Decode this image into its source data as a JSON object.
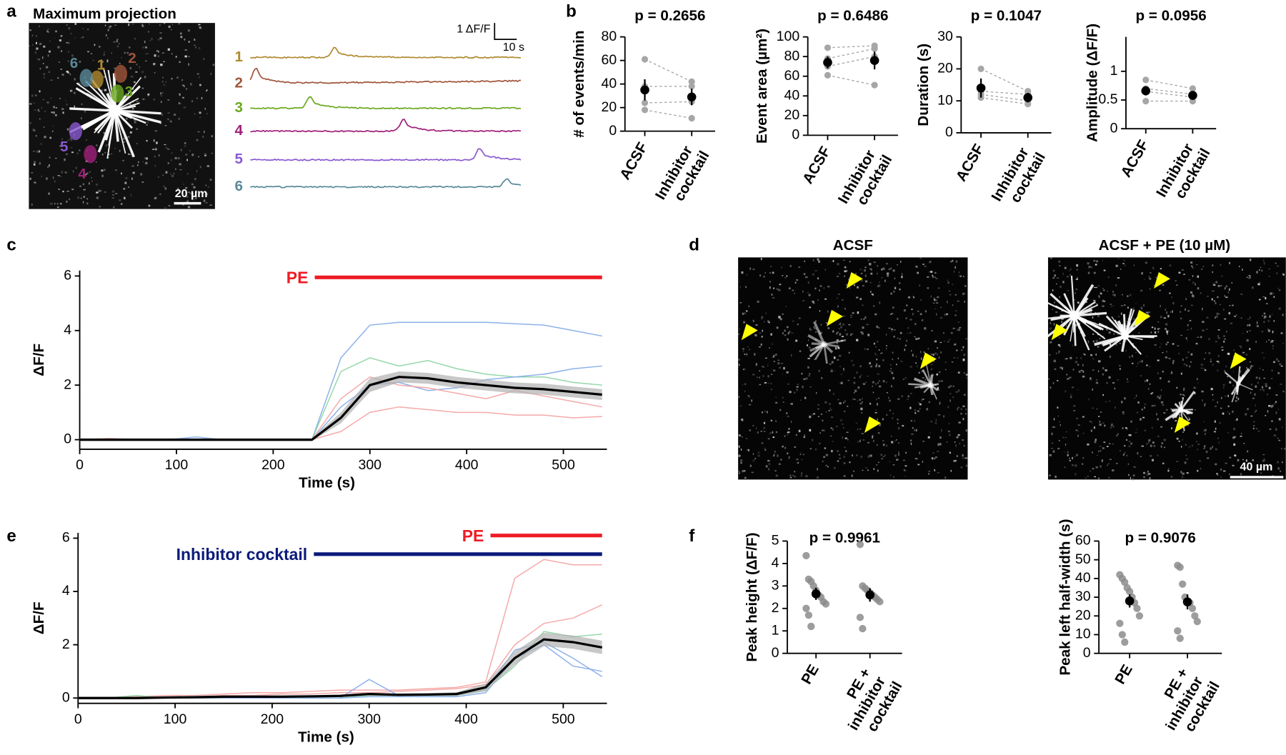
{
  "panel_labels": [
    "a",
    "b",
    "c",
    "d",
    "e",
    "f"
  ],
  "maximum_projection": {
    "title": "Maximum projection",
    "roi_labels": [
      "1",
      "2",
      "3",
      "4",
      "5",
      "6"
    ],
    "scale_bar": "20 µm"
  },
  "traces": {
    "labels": [
      "1",
      "2",
      "3",
      "4",
      "5",
      "6"
    ],
    "colors": [
      "#b08a30",
      "#a0553a",
      "#6aa820",
      "#a0207a",
      "#8a5ad0",
      "#5a8a9a"
    ],
    "scale_y": "1 ΔF/F",
    "scale_x": "10 s"
  },
  "images_d": {
    "titles": [
      "ACSF",
      "ACSF + PE (10 µM)"
    ],
    "scale_bar": "40 µm",
    "arrow_color": "#ffff00"
  },
  "chart_data": [
    {
      "type": "paired",
      "title": "p = 0.2656",
      "y_label": "# of events/min",
      "categories": [
        "ACSF",
        "Inhibitor cocktail"
      ],
      "ylim": [
        0,
        80
      ],
      "yticks": [
        0,
        20,
        40,
        60,
        80
      ],
      "series": [
        {
          "color": "#a6a6a6",
          "values": [
            61,
            42
          ]
        },
        {
          "color": "#a6a6a6",
          "values": [
            38,
            38
          ]
        },
        {
          "color": "#a6a6a6",
          "values": [
            24,
            25
          ]
        },
        {
          "color": "#a6a6a6",
          "values": [
            18,
            11
          ]
        }
      ],
      "mean": {
        "color": "#000000",
        "values": [
          35,
          29
        ],
        "errors": [
          9,
          7
        ]
      }
    },
    {
      "type": "paired",
      "title": "p = 0.6486",
      "y_label": "Event area (µm²)",
      "categories": [
        "ACSF",
        "Inhibitor cocktail"
      ],
      "ylim": [
        0,
        100
      ],
      "yticks": [
        0,
        20,
        40,
        60,
        80,
        100
      ],
      "series": [
        {
          "color": "#a6a6a6",
          "values": [
            89,
            91
          ]
        },
        {
          "color": "#a6a6a6",
          "values": [
            78,
            88
          ]
        },
        {
          "color": "#a6a6a6",
          "values": [
            70,
            80
          ]
        },
        {
          "color": "#a6a6a6",
          "values": [
            61,
            51
          ]
        }
      ],
      "mean": {
        "color": "#000000",
        "values": [
          74,
          76
        ],
        "errors": [
          6,
          9
        ]
      }
    },
    {
      "type": "paired",
      "title": "p = 0.1047",
      "y_label": "Duration (s)",
      "categories": [
        "ACSF",
        "Inhibitor cocktail"
      ],
      "ylim": [
        0,
        30
      ],
      "yticks": [
        0,
        10,
        20,
        30
      ],
      "series": [
        {
          "color": "#a6a6a6",
          "values": [
            20,
            13
          ]
        },
        {
          "color": "#a6a6a6",
          "values": [
            13,
            12
          ]
        },
        {
          "color": "#a6a6a6",
          "values": [
            12,
            10
          ]
        },
        {
          "color": "#a6a6a6",
          "values": [
            11,
            9
          ]
        }
      ],
      "mean": {
        "color": "#000000",
        "values": [
          14,
          11
        ],
        "errors": [
          3,
          1.5
        ]
      }
    },
    {
      "type": "paired",
      "title": "p = 0.0956",
      "y_label": "Amplitude (ΔF/F)",
      "categories": [
        "ACSF",
        "Inhibitor cocktail"
      ],
      "ylim": [
        0,
        1.6
      ],
      "yticks": [
        0,
        0.5,
        1
      ],
      "series": [
        {
          "color": "#a6a6a6",
          "values": [
            0.85,
            0.7
          ]
        },
        {
          "color": "#a6a6a6",
          "values": [
            0.7,
            0.6
          ]
        },
        {
          "color": "#a6a6a6",
          "values": [
            0.65,
            0.55
          ]
        },
        {
          "color": "#a6a6a6",
          "values": [
            0.48,
            0.48
          ]
        }
      ],
      "mean": {
        "color": "#000000",
        "values": [
          0.66,
          0.58
        ],
        "errors": [
          0.08,
          0.05
        ]
      }
    },
    {
      "type": "line",
      "x_label": "Time (s)",
      "y_label": "ΔF/F",
      "xlim": [
        0,
        545
      ],
      "ylim": [
        -0.35,
        6.2
      ],
      "xticks": [
        0,
        100,
        200,
        300,
        400,
        500
      ],
      "yticks": [
        0,
        2,
        4,
        6
      ],
      "x": [
        0,
        30,
        60,
        90,
        120,
        150,
        180,
        210,
        240,
        270,
        300,
        330,
        360,
        390,
        420,
        450,
        480,
        510,
        540
      ],
      "series": [
        {
          "color": "#7fa8e8",
          "values": [
            0,
            0,
            0,
            0,
            0.1,
            0,
            0,
            0,
            0,
            3.0,
            4.2,
            4.3,
            4.3,
            4.3,
            4.3,
            4.25,
            4.2,
            4.0,
            3.8
          ]
        },
        {
          "color": "#88d4a0",
          "values": [
            0,
            0,
            0,
            0,
            0,
            0,
            0,
            0,
            0,
            2.5,
            3.0,
            2.7,
            2.9,
            2.6,
            2.4,
            2.3,
            2.3,
            2.1,
            2.0
          ]
        },
        {
          "color": "#f4a0a0",
          "values": [
            0,
            0.05,
            0,
            0,
            0,
            0,
            0,
            0,
            0,
            0.3,
            1.0,
            1.2,
            1.1,
            1.0,
            1.0,
            0.9,
            0.9,
            0.8,
            0.85
          ]
        },
        {
          "color": "#7fa8e8",
          "values": [
            0,
            0,
            0,
            0,
            0,
            0,
            0,
            0,
            0,
            1.2,
            2.0,
            2.1,
            1.8,
            1.9,
            2.2,
            2.3,
            2.4,
            2.6,
            2.7
          ]
        },
        {
          "color": "#f4a0a0",
          "values": [
            0,
            0,
            0,
            0,
            0,
            0,
            0,
            0,
            0,
            1.5,
            2.3,
            2.0,
            1.9,
            1.7,
            1.5,
            1.8,
            1.6,
            1.4,
            1.2
          ]
        }
      ],
      "band": {
        "color": "#b0b0b0",
        "upper": [
          0.05,
          0.05,
          0.05,
          0.05,
          0.05,
          0.05,
          0.05,
          0.05,
          0.05,
          1.0,
          2.25,
          2.5,
          2.45,
          2.3,
          2.2,
          2.1,
          2.05,
          1.95,
          1.85
        ],
        "lower": [
          -0.05,
          -0.05,
          -0.05,
          -0.05,
          -0.05,
          -0.05,
          -0.05,
          -0.05,
          -0.05,
          0.6,
          1.75,
          2.1,
          2.05,
          1.9,
          1.8,
          1.7,
          1.65,
          1.55,
          1.45
        ]
      },
      "mean": {
        "color": "#000000",
        "values": [
          0,
          0,
          0,
          0,
          0,
          0,
          0,
          0,
          0,
          0.8,
          2.0,
          2.3,
          2.25,
          2.1,
          2.0,
          1.9,
          1.85,
          1.75,
          1.65
        ]
      },
      "annotations": [
        {
          "text": "PE",
          "color": "#ee1c25",
          "x0": 243,
          "x1": 540,
          "y": 5.95
        }
      ]
    },
    {
      "type": "line",
      "x_label": "Time (s)",
      "y_label": "ΔF/F",
      "xlim": [
        0,
        545
      ],
      "ylim": [
        -0.2,
        6.2
      ],
      "xticks": [
        0,
        100,
        200,
        300,
        400,
        500
      ],
      "yticks": [
        0,
        2,
        4,
        6
      ],
      "x": [
        0,
        30,
        60,
        90,
        120,
        150,
        180,
        210,
        240,
        270,
        300,
        330,
        360,
        390,
        420,
        450,
        480,
        510,
        540
      ],
      "series": [
        {
          "color": "#f4a0a0",
          "values": [
            0,
            0,
            0.05,
            0.1,
            0.1,
            0.15,
            0.2,
            0.2,
            0.25,
            0.3,
            0.3,
            0.3,
            0.35,
            0.4,
            0.6,
            4.5,
            5.2,
            5.0,
            5.0
          ]
        },
        {
          "color": "#f4a0a0",
          "values": [
            0,
            0,
            0,
            0.05,
            0.05,
            0.1,
            0.1,
            0.15,
            0.15,
            0.2,
            0.2,
            0.25,
            0.3,
            0.35,
            0.5,
            2.0,
            2.8,
            3.0,
            3.5
          ]
        },
        {
          "color": "#7fa8e8",
          "values": [
            0,
            0,
            0,
            0,
            0,
            0,
            0,
            0,
            0,
            0,
            0.7,
            0.1,
            0.1,
            0.1,
            0.3,
            1.8,
            2.1,
            1.5,
            0.8
          ]
        },
        {
          "color": "#88d4a0",
          "values": [
            0,
            0,
            0.1,
            0,
            0,
            0,
            0,
            0,
            0,
            0,
            0.1,
            0.1,
            0.1,
            0.1,
            0.3,
            1.2,
            2.5,
            2.3,
            2.4
          ]
        },
        {
          "color": "#7fa8e8",
          "values": [
            0,
            0,
            0,
            0,
            0,
            0,
            0,
            0,
            0,
            0,
            0.05,
            0.05,
            0.05,
            0.05,
            0.2,
            1.5,
            2.0,
            1.2,
            1.0
          ]
        }
      ],
      "band": {
        "color": "#b0b0b0",
        "upper": [
          0.05,
          0.05,
          0.05,
          0.07,
          0.08,
          0.1,
          0.1,
          0.1,
          0.11,
          0.13,
          0.2,
          0.17,
          0.18,
          0.22,
          0.55,
          1.75,
          2.45,
          2.35,
          2.15
        ],
        "lower": [
          -0.05,
          -0.05,
          -0.05,
          -0.03,
          -0.02,
          0,
          0,
          0,
          0.01,
          0.03,
          0.1,
          0.07,
          0.08,
          0.08,
          0.25,
          1.25,
          1.95,
          1.85,
          1.65
        ]
      },
      "mean": {
        "color": "#000000",
        "values": [
          0,
          0,
          0,
          0.02,
          0.03,
          0.05,
          0.05,
          0.05,
          0.06,
          0.08,
          0.15,
          0.12,
          0.13,
          0.15,
          0.4,
          1.5,
          2.2,
          2.1,
          1.9
        ]
      },
      "annotations": [
        {
          "text": "PE",
          "color": "#ee1c25",
          "x0": 425,
          "x1": 540,
          "y": 6.1
        },
        {
          "text": "Inhibitor cocktail",
          "color": "#0a1a7a",
          "x0": 243,
          "x1": 540,
          "y": 5.4
        }
      ]
    },
    {
      "type": "strip",
      "title": "p = 0.9961",
      "y_label": "Peak height (ΔF/F)",
      "categories": [
        "PE",
        "PE + inhibitor cocktail"
      ],
      "ylim": [
        0,
        5
      ],
      "yticks": [
        0,
        1,
        2,
        3,
        4,
        5
      ],
      "series": [
        {
          "color": "#8c8c8c",
          "values": [
            4.35,
            3.3,
            3.2,
            3.0,
            2.8,
            2.6,
            2.5,
            2.3,
            2.2,
            2.0,
            1.7,
            1.2
          ]
        },
        {
          "color": "#8c8c8c",
          "values": [
            4.85,
            3.0,
            2.9,
            2.8,
            2.7,
            2.6,
            2.5,
            2.4,
            2.3,
            1.6,
            1.1
          ]
        }
      ],
      "mean": {
        "color": "#000000",
        "values": [
          2.65,
          2.6
        ],
        "errors": [
          0.27,
          0.3
        ]
      }
    },
    {
      "type": "strip",
      "title": "p = 0.9076",
      "y_label": "Peak left half-width (s)",
      "categories": [
        "PE",
        "PE + inhibitor cocktail"
      ],
      "ylim": [
        0,
        60
      ],
      "yticks": [
        0,
        10,
        20,
        30,
        40,
        50,
        60
      ],
      "series": [
        {
          "color": "#8c8c8c",
          "values": [
            42,
            40,
            38,
            35,
            33,
            30,
            27,
            24,
            20,
            16,
            10,
            6
          ]
        },
        {
          "color": "#8c8c8c",
          "values": [
            47,
            46,
            37,
            30,
            28,
            27,
            24,
            20,
            17,
            12,
            8
          ]
        }
      ],
      "mean": {
        "color": "#000000",
        "values": [
          28,
          27.5
        ],
        "errors": [
          3.5,
          4
        ]
      }
    }
  ]
}
